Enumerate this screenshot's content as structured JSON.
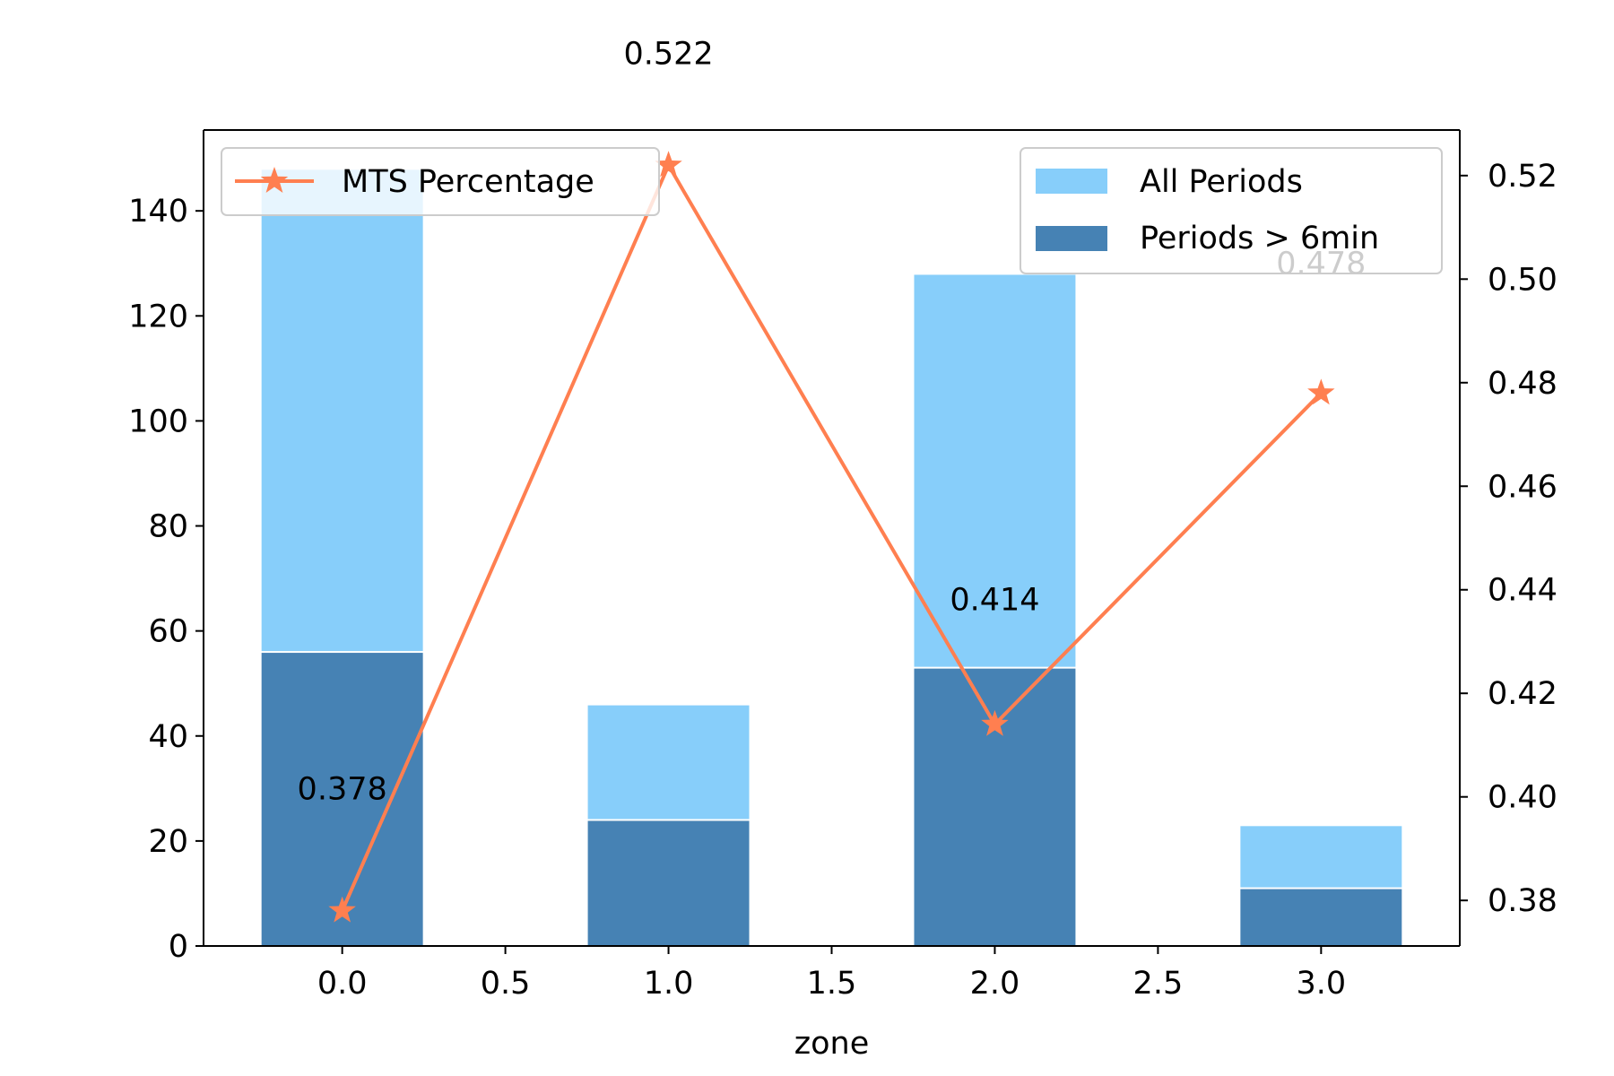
{
  "chart_data": {
    "type": "bar",
    "subtype": "stacked-bar-with-line-dual-axis",
    "title": "",
    "xlabel": "zone",
    "ylabel": "",
    "ylabel_right": "",
    "x": [
      0,
      1,
      2,
      3
    ],
    "xlim": [
      -0.425,
      3.425
    ],
    "x_ticks": [
      0.0,
      0.5,
      1.0,
      1.5,
      2.0,
      2.5,
      3.0
    ],
    "x_tick_labels": [
      "0.0",
      "0.5",
      "1.0",
      "1.5",
      "2.0",
      "2.5",
      "3.0"
    ],
    "ylim": [
      0,
      155.4
    ],
    "y_ticks": [
      0,
      20,
      40,
      60,
      80,
      100,
      120,
      140
    ],
    "y_tick_labels": [
      "0",
      "20",
      "40",
      "60",
      "80",
      "100",
      "120",
      "140"
    ],
    "ylim_right": [
      0.3712,
      0.5288
    ],
    "y_ticks_right": [
      0.38,
      0.4,
      0.42,
      0.44,
      0.46,
      0.48,
      0.5,
      0.52
    ],
    "y_tick_labels_right": [
      "0.38",
      "0.40",
      "0.42",
      "0.44",
      "0.46",
      "0.48",
      "0.50",
      "0.52"
    ],
    "bar_width": 0.5,
    "series": [
      {
        "name": "All Periods",
        "type": "bar",
        "axis": "left",
        "color": "#87CEFA",
        "values": [
          148,
          46,
          128,
          23
        ]
      },
      {
        "name": "Periods > 6min",
        "type": "bar",
        "axis": "left",
        "color": "#4682B4",
        "values": [
          56,
          24,
          53,
          11
        ]
      },
      {
        "name": "MTS Percentage",
        "type": "line",
        "axis": "right",
        "marker": "star",
        "color": "#FF7F50",
        "values": [
          0.378,
          0.522,
          0.414,
          0.478
        ]
      }
    ],
    "data_labels": [
      "0.378",
      "0.522",
      "0.414",
      "0.478"
    ],
    "data_label_values_left_axis": [
      30,
      170,
      66,
      130
    ],
    "legends": {
      "left": "upper-left",
      "right": "upper-right"
    },
    "grid": false
  }
}
